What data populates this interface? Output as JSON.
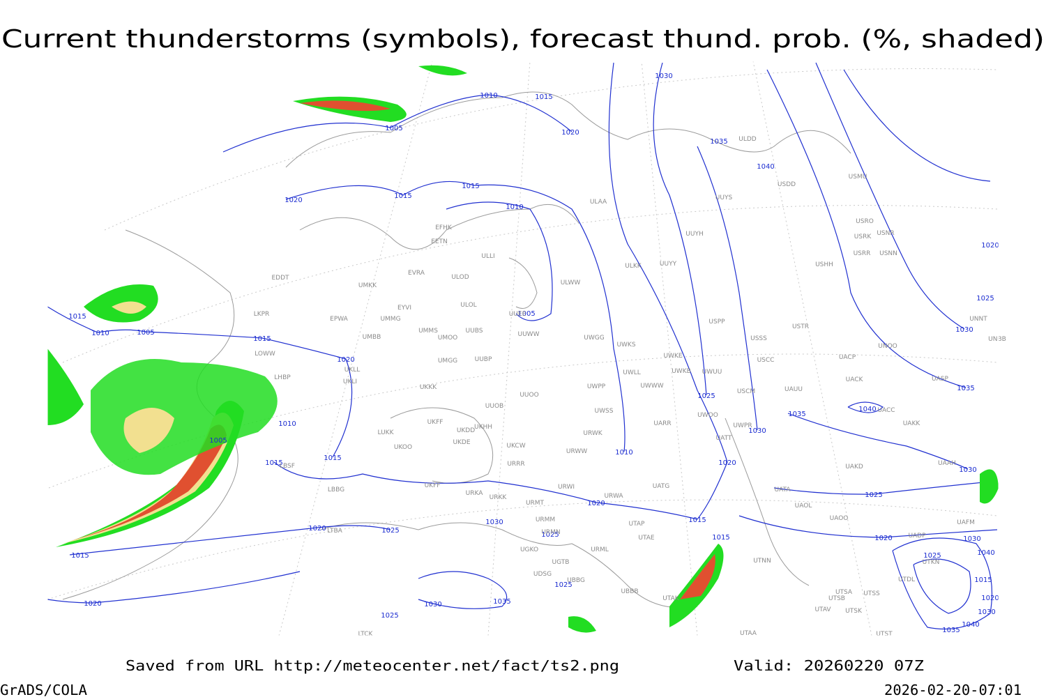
{
  "header": {
    "title": "Current thunderstorms (symbols), forecast thund. prob. (%, shaded)"
  },
  "map": {
    "isobar_labels": [
      1010,
      1015,
      1005,
      1020,
      1030,
      1035,
      1040,
      1015,
      1015,
      1020,
      1010,
      1005,
      1015,
      1010,
      1005,
      1015,
      1020,
      1005,
      1010,
      1015,
      1015,
      1010,
      1025,
      1030,
      1035,
      1040,
      1020,
      1030,
      1025,
      1020,
      1015,
      1020,
      1025,
      1030,
      1025,
      1015,
      1020,
      1025,
      1030,
      1035,
      1025,
      1015,
      1020,
      1030,
      1025,
      1040,
      1015,
      1020,
      1030,
      1040,
      1035,
      1020,
      1025,
      1030,
      1035
    ],
    "station_labels": [
      "ULDD",
      "USDD",
      "USMU",
      "UUYS",
      "USRO",
      "USNR",
      "USRK",
      "USRR",
      "USNN",
      "UUYH",
      "USHH",
      "ULAA",
      "EFHK",
      "EETN",
      "EVRA",
      "ULLI",
      "ULOD",
      "ULOL",
      "UUEE",
      "ULKK",
      "UUYY",
      "ULWW",
      "EDDT",
      "UMKK",
      "EYVI",
      "EPWA",
      "UMMG",
      "LKPR",
      "UMMS",
      "UMOO",
      "UUBS",
      "UUWW",
      "UWGG",
      "UWKS",
      "UMBB",
      "UWKE",
      "UWKB",
      "UWUU",
      "UWLL",
      "LOWW",
      "UKLL",
      "UKLI",
      "UMGG",
      "UUBP",
      "LHBP",
      "UKKK",
      "UUOO",
      "UWPP",
      "UWWW",
      "USPP",
      "USSS",
      "USTR",
      "USCC",
      "UACP",
      "UNOO",
      "UNNT",
      "UNBB",
      "UACK",
      "UASP",
      "USCM",
      "UAUU",
      "UACC",
      "UAKK",
      "UWSS",
      "UUOB",
      "UKHH",
      "UKFF",
      "UKDD",
      "UKDE",
      "LUKK",
      "UKOO",
      "UWOO",
      "UWPR",
      "UATT",
      "UARR",
      "URWK",
      "UKCW",
      "URWW",
      "LBSF",
      "URRR",
      "UKFF",
      "UAKD",
      "UAAH",
      "URWI",
      "UATG",
      "UATA",
      "LBBG",
      "URKA",
      "URKK",
      "URWA",
      "URMT",
      "UAOL",
      "UAOO",
      "UAFM",
      "URMM",
      "UTAP",
      "URMN",
      "UTAE",
      "UADP",
      "UGKO",
      "URML",
      "UTKN",
      "UGTB",
      "UDSG",
      "UBBG",
      "UBBB",
      "UTDL",
      "UTAK",
      "UTSA",
      "UTSS",
      "UTSB",
      "UTAV",
      "UTSK",
      "UTNN",
      "LTBA",
      "LTCK",
      "UTAA",
      "UTST"
    ]
  },
  "footer": {
    "source": "Saved from URL http://meteocenter.net/fact/ts2.png",
    "valid": "Valid: 20260220 07Z",
    "software": "GrADS/COLA",
    "timestamp": "2026-02-20-07:01"
  }
}
